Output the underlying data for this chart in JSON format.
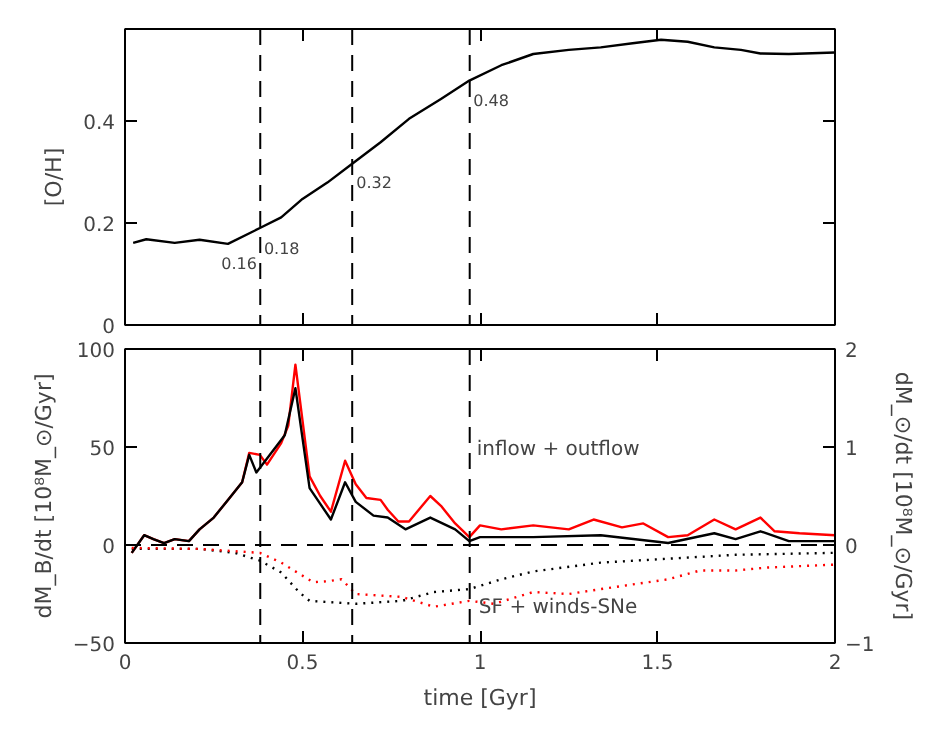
{
  "chart_data": [
    {
      "type": "line",
      "ylabel": "[O/H]",
      "xlim": [
        0,
        2
      ],
      "ylim": [
        0,
        0.58
      ],
      "xticks": [
        0,
        0.5,
        1,
        1.5,
        2
      ],
      "yticks": [
        0,
        0.2,
        0.4
      ],
      "tick_labels": "y",
      "grid": false,
      "series": [
        {
          "color": "#000000",
          "line_style": "solid",
          "x": [
            0.023,
            0.06,
            0.14,
            0.21,
            0.29,
            0.38,
            0.44,
            0.5,
            0.57,
            0.64,
            0.72,
            0.8,
            0.89,
            0.97,
            1.06,
            1.15,
            1.25,
            1.34,
            1.43,
            1.51,
            1.585,
            1.66,
            1.735,
            1.79,
            1.87,
            2.0
          ],
          "values": [
            0.161,
            0.168,
            0.161,
            0.167,
            0.159,
            0.19,
            0.211,
            0.247,
            0.279,
            0.316,
            0.358,
            0.404,
            0.443,
            0.479,
            0.509,
            0.531,
            0.539,
            0.544,
            0.552,
            0.559,
            0.555,
            0.544,
            0.539,
            0.532,
            0.531,
            0.534
          ]
        }
      ],
      "ref_lines": [
        {
          "axis": "x",
          "value": 0.381,
          "line_style": "dashed"
        },
        {
          "axis": "x",
          "value": 0.64,
          "line_style": "dashed"
        },
        {
          "axis": "x",
          "value": 0.971,
          "line_style": "dashed"
        }
      ],
      "annotations": [
        {
          "text": "0.16",
          "x": 0.26,
          "y": 0.16
        },
        {
          "text": "0.18",
          "x": 0.38,
          "y": 0.19
        },
        {
          "text": "0.32",
          "x": 0.64,
          "y": 0.32
        },
        {
          "text": "0.48",
          "x": 0.97,
          "y": 0.48
        }
      ]
    },
    {
      "type": "line",
      "xlabel": "time [Gyr]",
      "ylabel": "dM_B/dt [10⁸M_⊙/Gyr]",
      "y2label": "dM_⊙/dt [10⁸M_⊙/Gyr]",
      "xlim": [
        0,
        2
      ],
      "ylim": [
        -50,
        100
      ],
      "y2lim": [
        -1,
        2
      ],
      "xticks": [
        0,
        0.5,
        1,
        1.5,
        2
      ],
      "yticks": [
        -50,
        0,
        50,
        100
      ],
      "y2ticks": [
        -1,
        0,
        1,
        2
      ],
      "grid": false,
      "series": [
        {
          "color": "#ff0000",
          "line_style": "solid",
          "x": [
            0.019,
            0.054,
            0.08,
            0.11,
            0.14,
            0.18,
            0.21,
            0.25,
            0.29,
            0.33,
            0.35,
            0.38,
            0.4,
            0.44,
            0.46,
            0.48,
            0.52,
            0.55,
            0.58,
            0.62,
            0.65,
            0.68,
            0.72,
            0.74,
            0.77,
            0.8,
            0.86,
            0.89,
            0.93,
            0.97,
            1.0,
            1.06,
            1.15,
            1.25,
            1.32,
            1.4,
            1.46,
            1.53,
            1.585,
            1.66,
            1.72,
            1.79,
            1.83,
            1.9,
            2.0
          ],
          "values": [
            -4,
            5,
            3,
            1,
            3,
            2,
            8,
            14,
            23,
            32,
            47,
            46,
            41,
            52,
            61,
            92,
            35,
            25,
            17,
            43,
            31,
            24,
            23,
            18,
            12,
            12,
            25,
            20,
            11,
            4,
            10,
            8,
            10,
            8,
            13,
            9,
            11,
            4,
            5,
            13,
            8,
            14,
            7,
            6,
            5
          ]
        },
        {
          "color": "#000000",
          "line_style": "solid",
          "x": [
            0.019,
            0.054,
            0.08,
            0.11,
            0.14,
            0.18,
            0.21,
            0.25,
            0.29,
            0.33,
            0.35,
            0.37,
            0.45,
            0.48,
            0.52,
            0.58,
            0.62,
            0.65,
            0.7,
            0.74,
            0.79,
            0.86,
            0.93,
            0.97,
            1.0,
            1.15,
            1.34,
            1.53,
            1.66,
            1.72,
            1.79,
            1.87,
            2.0
          ],
          "values": [
            -4,
            5,
            3,
            1,
            3,
            2,
            8,
            14,
            23,
            32,
            46,
            37,
            56,
            80,
            29,
            13,
            32,
            22,
            15,
            14,
            8,
            14,
            8,
            2,
            4,
            4,
            5,
            1,
            6,
            3,
            7,
            2,
            2
          ]
        },
        {
          "color": "#000000",
          "line_style": "dotted",
          "axis": "y2",
          "x": [
            0.019,
            0.21,
            0.31,
            0.38,
            0.44,
            0.49,
            0.52,
            0.65,
            0.78,
            0.87,
            0.97,
            1.06,
            1.15,
            1.34,
            1.53,
            1.72,
            2.0
          ],
          "values": [
            -0.04,
            -0.04,
            -0.08,
            -0.16,
            -0.28,
            -0.48,
            -0.57,
            -0.6,
            -0.57,
            -0.48,
            -0.45,
            -0.35,
            -0.27,
            -0.18,
            -0.14,
            -0.1,
            -0.08
          ]
        },
        {
          "color": "#ff0000",
          "line_style": "dotted",
          "axis": "y2",
          "x": [
            0.019,
            0.21,
            0.38,
            0.44,
            0.53,
            0.57,
            0.61,
            0.65,
            0.78,
            0.87,
            0.97,
            1.04,
            1.15,
            1.25,
            1.34,
            1.53,
            1.62,
            1.72,
            1.81,
            2.0
          ],
          "values": [
            -0.03,
            -0.04,
            -0.08,
            -0.18,
            -0.38,
            -0.37,
            -0.35,
            -0.5,
            -0.53,
            -0.63,
            -0.57,
            -0.6,
            -0.48,
            -0.5,
            -0.45,
            -0.35,
            -0.26,
            -0.26,
            -0.23,
            -0.2
          ]
        }
      ],
      "ref_lines": [
        {
          "axis": "x",
          "value": 0.381,
          "line_style": "dashed"
        },
        {
          "axis": "x",
          "value": 0.64,
          "line_style": "dashed"
        },
        {
          "axis": "x",
          "value": 0.971,
          "line_style": "dashed"
        },
        {
          "axis": "y",
          "value": 0,
          "line_style": "dashed"
        }
      ],
      "annotations": [
        "inflow + outflow",
        "SF + winds-SNe"
      ]
    }
  ]
}
